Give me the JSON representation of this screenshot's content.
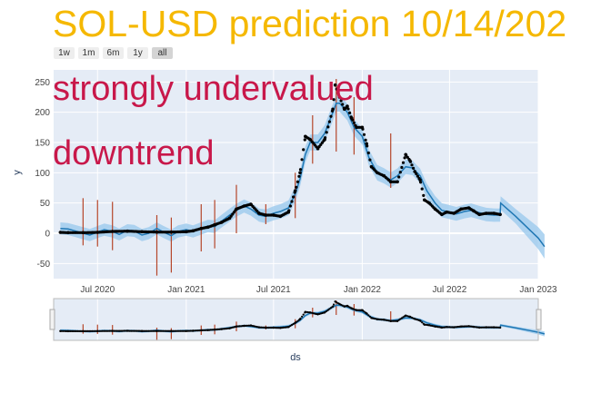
{
  "title": "SOL-USD prediction 10/14/202",
  "annotations": [
    "strongly undervalued",
    "downtrend"
  ],
  "range_buttons": [
    "1w",
    "1m",
    "6m",
    "1y",
    "all"
  ],
  "active_range": "all",
  "colors": {
    "title": "#f5b800",
    "annotation": "#c8184a",
    "forecast_line": "#1f77b4",
    "uncertainty_band": "#9ccbee",
    "actual_points": "#000000",
    "changepoints": "#b5462a",
    "plot_background": "#e5ecf6"
  },
  "chart_data": {
    "type": "line",
    "xlabel": "ds",
    "ylabel": "y",
    "x_range": [
      "2020-04-01",
      "2023-01-01"
    ],
    "ylim": [
      -75,
      270
    ],
    "y_ticks": [
      -50,
      0,
      50,
      100,
      150,
      200,
      250
    ],
    "x_ticks": [
      {
        "date": "2020-07-01",
        "label": "Jul 2020"
      },
      {
        "date": "2021-01-01",
        "label": "Jan 2021"
      },
      {
        "date": "2021-07-01",
        "label": "Jul 2021"
      },
      {
        "date": "2022-01-01",
        "label": "Jan 2022"
      },
      {
        "date": "2022-07-01",
        "label": "Jul 2022"
      },
      {
        "date": "2023-01-01",
        "label": "Jan 2023"
      }
    ],
    "grid": true,
    "legend": "none",
    "actual": [
      [
        "2020-04-15",
        1.5
      ],
      [
        "2020-05-01",
        1
      ],
      [
        "2020-06-01",
        1
      ],
      [
        "2020-07-01",
        1.5
      ],
      [
        "2020-08-01",
        3
      ],
      [
        "2020-09-01",
        3.5
      ],
      [
        "2020-10-01",
        2.5
      ],
      [
        "2020-11-01",
        2
      ],
      [
        "2020-12-01",
        2
      ],
      [
        "2021-01-01",
        2.5
      ],
      [
        "2021-01-15",
        4
      ],
      [
        "2021-02-01",
        8
      ],
      [
        "2021-02-15",
        10
      ],
      [
        "2021-03-01",
        14
      ],
      [
        "2021-03-15",
        18
      ],
      [
        "2021-04-01",
        25
      ],
      [
        "2021-04-15",
        40
      ],
      [
        "2021-05-01",
        45
      ],
      [
        "2021-05-15",
        48
      ],
      [
        "2021-06-01",
        33
      ],
      [
        "2021-06-15",
        30
      ],
      [
        "2021-07-01",
        30
      ],
      [
        "2021-07-15",
        28
      ],
      [
        "2021-08-01",
        35
      ],
      [
        "2021-08-15",
        70
      ],
      [
        "2021-08-25",
        100
      ],
      [
        "2021-09-05",
        160
      ],
      [
        "2021-09-15",
        155
      ],
      [
        "2021-10-01",
        140
      ],
      [
        "2021-10-15",
        155
      ],
      [
        "2021-11-01",
        205
      ],
      [
        "2021-11-06",
        245
      ],
      [
        "2021-11-15",
        225
      ],
      [
        "2021-11-25",
        205
      ],
      [
        "2021-12-01",
        210
      ],
      [
        "2021-12-10",
        190
      ],
      [
        "2021-12-20",
        175
      ],
      [
        "2022-01-01",
        175
      ],
      [
        "2022-01-10",
        148
      ],
      [
        "2022-01-20",
        110
      ],
      [
        "2022-02-01",
        100
      ],
      [
        "2022-02-15",
        95
      ],
      [
        "2022-03-01",
        85
      ],
      [
        "2022-03-15",
        85
      ],
      [
        "2022-04-01",
        130
      ],
      [
        "2022-04-10",
        120
      ],
      [
        "2022-04-20",
        102
      ],
      [
        "2022-05-01",
        88
      ],
      [
        "2022-05-10",
        55
      ],
      [
        "2022-05-20",
        50
      ],
      [
        "2022-06-01",
        40
      ],
      [
        "2022-06-15",
        31
      ],
      [
        "2022-06-25",
        35
      ],
      [
        "2022-07-10",
        33
      ],
      [
        "2022-07-25",
        40
      ],
      [
        "2022-08-10",
        42
      ],
      [
        "2022-08-20",
        37
      ],
      [
        "2022-09-01",
        31
      ],
      [
        "2022-09-15",
        33
      ],
      [
        "2022-10-01",
        33
      ],
      [
        "2022-10-14",
        31
      ]
    ],
    "forecast": [
      [
        "2020-04-15",
        8
      ],
      [
        "2020-05-01",
        7
      ],
      [
        "2020-05-15",
        4
      ],
      [
        "2020-06-01",
        0
      ],
      [
        "2020-06-15",
        -3
      ],
      [
        "2020-07-01",
        2
      ],
      [
        "2020-07-15",
        6
      ],
      [
        "2020-08-01",
        3
      ],
      [
        "2020-08-15",
        -2
      ],
      [
        "2020-09-01",
        5
      ],
      [
        "2020-09-15",
        4
      ],
      [
        "2020-10-01",
        -3
      ],
      [
        "2020-10-15",
        0
      ],
      [
        "2020-11-01",
        8
      ],
      [
        "2020-11-15",
        2
      ],
      [
        "2020-12-01",
        -4
      ],
      [
        "2020-12-15",
        3
      ],
      [
        "2021-01-01",
        6
      ],
      [
        "2021-01-15",
        3
      ],
      [
        "2021-02-01",
        8
      ],
      [
        "2021-02-15",
        12
      ],
      [
        "2021-03-01",
        11
      ],
      [
        "2021-03-15",
        20
      ],
      [
        "2021-04-01",
        30
      ],
      [
        "2021-04-15",
        38
      ],
      [
        "2021-05-01",
        45
      ],
      [
        "2021-05-15",
        40
      ],
      [
        "2021-06-01",
        30
      ],
      [
        "2021-06-15",
        28
      ],
      [
        "2021-07-01",
        33
      ],
      [
        "2021-07-15",
        36
      ],
      [
        "2021-08-01",
        42
      ],
      [
        "2021-08-15",
        65
      ],
      [
        "2021-08-25",
        90
      ],
      [
        "2021-09-05",
        130
      ],
      [
        "2021-09-15",
        150
      ],
      [
        "2021-10-01",
        150
      ],
      [
        "2021-10-15",
        165
      ],
      [
        "2021-11-01",
        200
      ],
      [
        "2021-11-08",
        215
      ],
      [
        "2021-11-15",
        215
      ],
      [
        "2021-12-01",
        200
      ],
      [
        "2021-12-15",
        175
      ],
      [
        "2022-01-01",
        160
      ],
      [
        "2022-01-15",
        125
      ],
      [
        "2022-02-01",
        100
      ],
      [
        "2022-02-15",
        95
      ],
      [
        "2022-03-01",
        88
      ],
      [
        "2022-03-15",
        95
      ],
      [
        "2022-04-01",
        110
      ],
      [
        "2022-04-15",
        108
      ],
      [
        "2022-05-01",
        95
      ],
      [
        "2022-05-15",
        70
      ],
      [
        "2022-06-01",
        50
      ],
      [
        "2022-06-15",
        38
      ],
      [
        "2022-07-01",
        35
      ],
      [
        "2022-07-15",
        32
      ],
      [
        "2022-08-01",
        36
      ],
      [
        "2022-08-15",
        38
      ],
      [
        "2022-09-01",
        34
      ],
      [
        "2022-09-15",
        31
      ],
      [
        "2022-10-01",
        30
      ],
      [
        "2022-10-14",
        30
      ],
      [
        "2022-10-15",
        50
      ],
      [
        "2022-11-15",
        28
      ],
      [
        "2022-12-15",
        5
      ],
      [
        "2023-01-01",
        -8
      ],
      [
        "2023-01-14",
        -22
      ]
    ],
    "band_half_width": [
      [
        "2020-04-15",
        10
      ],
      [
        "2021-01-01",
        10
      ],
      [
        "2021-06-01",
        11
      ],
      [
        "2021-09-01",
        13
      ],
      [
        "2021-11-15",
        14
      ],
      [
        "2022-04-01",
        12
      ],
      [
        "2022-10-14",
        11
      ],
      [
        "2022-11-15",
        12
      ],
      [
        "2023-01-14",
        20
      ]
    ],
    "changepoints": [
      [
        "2020-06-01",
        -20,
        58
      ],
      [
        "2020-07-01",
        -22,
        55
      ],
      [
        "2020-08-01",
        -28,
        52
      ],
      [
        "2020-11-01",
        -70,
        30
      ],
      [
        "2020-12-01",
        -65,
        26
      ],
      [
        "2021-02-01",
        -30,
        48
      ],
      [
        "2021-03-01",
        -25,
        55
      ],
      [
        "2021-04-15",
        0,
        80
      ],
      [
        "2021-06-15",
        15,
        48
      ],
      [
        "2021-08-15",
        25,
        100
      ],
      [
        "2021-09-20",
        115,
        195
      ],
      [
        "2021-11-08",
        135,
        255
      ],
      [
        "2021-12-15",
        130,
        225
      ],
      [
        "2022-03-01",
        75,
        165
      ]
    ]
  }
}
